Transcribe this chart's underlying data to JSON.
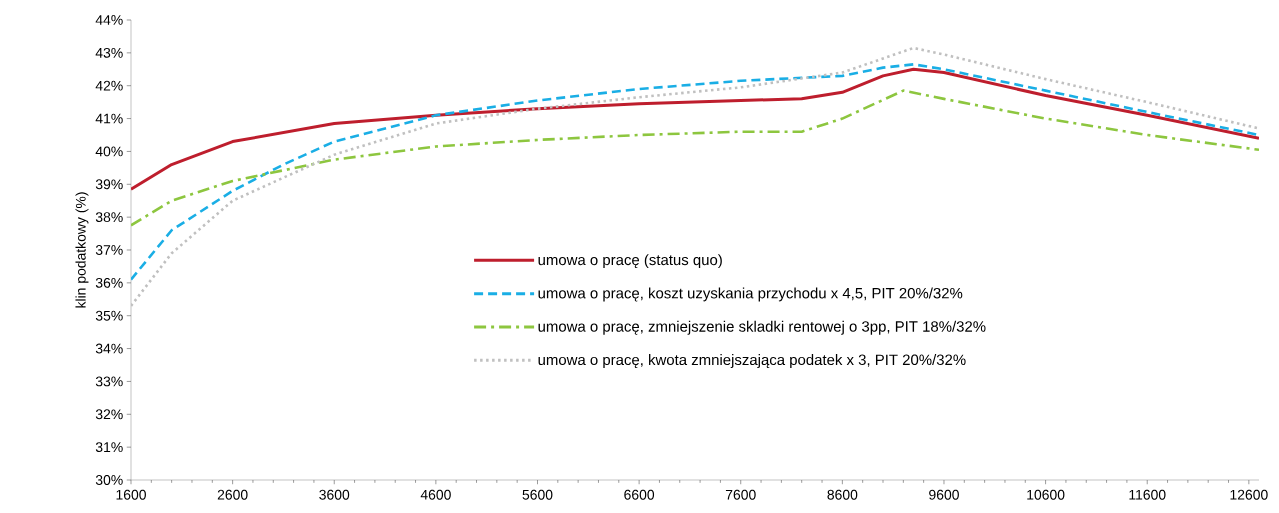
{
  "chart_data": {
    "type": "line",
    "ylabel": "klin podatkowy (%)",
    "xlim": [
      1600,
      12700
    ],
    "xticks": [
      1600,
      2600,
      3600,
      4600,
      5600,
      6600,
      7600,
      8600,
      9600,
      10600,
      11600,
      12600
    ],
    "ylim": [
      30,
      44
    ],
    "yticks": [
      {
        "value": 30,
        "label": "30%"
      },
      {
        "value": 31,
        "label": "31%"
      },
      {
        "value": 32,
        "label": "32%"
      },
      {
        "value": 33,
        "label": "33%"
      },
      {
        "value": 34,
        "label": "34%"
      },
      {
        "value": 35,
        "label": "35%"
      },
      {
        "value": 36,
        "label": "36%"
      },
      {
        "value": 37,
        "label": "37%"
      },
      {
        "value": 38,
        "label": "38%"
      },
      {
        "value": 39,
        "label": "39%"
      },
      {
        "value": 40,
        "label": "40%"
      },
      {
        "value": 41,
        "label": "41%"
      },
      {
        "value": 42,
        "label": "42%"
      },
      {
        "value": 43,
        "label": "43%"
      },
      {
        "value": 44,
        "label": "44%"
      }
    ],
    "grid": false,
    "legend": "center",
    "marker": "none",
    "series": [
      {
        "name": "umowa o pracę (status quo)",
        "color": "#be1e2d",
        "line_style": "solid",
        "x": [
          1600,
          2000,
          2600,
          3600,
          4600,
          5600,
          6600,
          7600,
          8200,
          8600,
          9000,
          9300,
          9600,
          10600,
          11600,
          12700
        ],
        "values": [
          38.85,
          39.6,
          40.3,
          40.85,
          41.1,
          41.3,
          41.45,
          41.55,
          41.6,
          41.8,
          42.3,
          42.5,
          42.4,
          41.7,
          41.1,
          40.4
        ]
      },
      {
        "name": "umowa o pracę, koszt uzyskania przychodu x 4,5, PIT 20%/32%",
        "color": "#1aaee5",
        "line_style": "dashed",
        "x": [
          1600,
          2000,
          2600,
          3100,
          3600,
          4600,
          5600,
          6600,
          7600,
          8600,
          9000,
          9300,
          9600,
          10600,
          11600,
          12700
        ],
        "values": [
          36.1,
          37.6,
          38.8,
          39.6,
          40.3,
          41.1,
          41.55,
          41.9,
          42.15,
          42.3,
          42.55,
          42.65,
          42.5,
          41.85,
          41.2,
          40.5
        ]
      },
      {
        "name": "umowa o pracę, zmniejszenie skladki rentowej o 3pp, PIT 18%/32%",
        "color": "#8dc63f",
        "line_style": "dashdot",
        "x": [
          1600,
          2000,
          2600,
          3600,
          4600,
          5600,
          6600,
          7600,
          8200,
          8600,
          9200,
          9600,
          10600,
          11600,
          12700
        ],
        "values": [
          37.75,
          38.5,
          39.1,
          39.75,
          40.15,
          40.35,
          40.5,
          40.6,
          40.6,
          41.0,
          41.85,
          41.6,
          41.0,
          40.5,
          40.05
        ]
      },
      {
        "name": "umowa o pracę, kwota zmniejszająca podatek x 3, PIT 20%/32%",
        "color": "#c0c0c0",
        "line_style": "dotted",
        "x": [
          1600,
          2000,
          2600,
          3600,
          4600,
          5600,
          6600,
          7600,
          8600,
          9300,
          9600,
          10600,
          11600,
          12700
        ],
        "values": [
          35.3,
          36.9,
          38.5,
          39.9,
          40.85,
          41.3,
          41.65,
          41.95,
          42.4,
          43.15,
          42.95,
          42.2,
          41.5,
          40.7
        ]
      }
    ]
  }
}
